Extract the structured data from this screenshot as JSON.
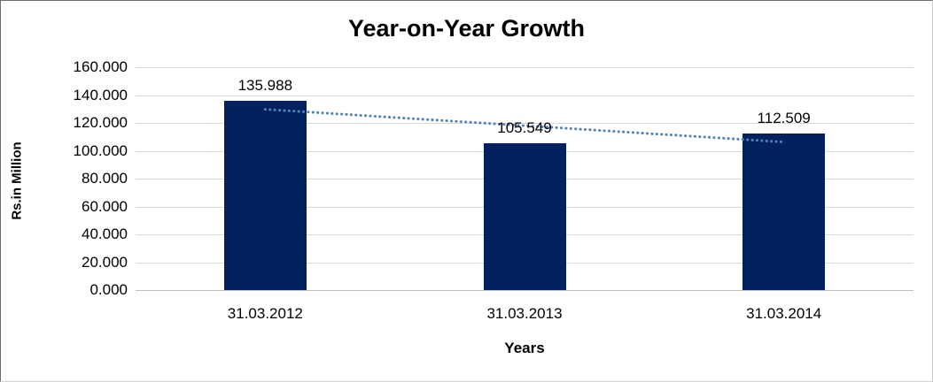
{
  "chart_data": {
    "type": "bar",
    "title": "Year-on-Year Growth",
    "xlabel": "Years",
    "ylabel": "Rs.in Million",
    "categories": [
      "31.03.2012",
      "31.03.2013",
      "31.03.2014"
    ],
    "values": [
      135.988,
      105.549,
      112.509
    ],
    "data_labels": [
      "135.988",
      "105.549",
      "112.509"
    ],
    "ylim": [
      0,
      160
    ],
    "yticks": [
      0,
      20,
      40,
      60,
      80,
      100,
      120,
      140,
      160
    ],
    "ytick_labels": [
      "0.000",
      "20.000",
      "40.000",
      "60.000",
      "80.000",
      "100.000",
      "120.000",
      "140.000",
      "160.000"
    ],
    "grid": true,
    "legend_position": "none",
    "trendline": {
      "type": "linear",
      "style": "dotted"
    },
    "colors": {
      "bar": "#02215e",
      "trendline": "#4f81bd",
      "gridline": "#d9d9d9",
      "axis_line": "#bfbfbf",
      "text": "#000000"
    }
  }
}
